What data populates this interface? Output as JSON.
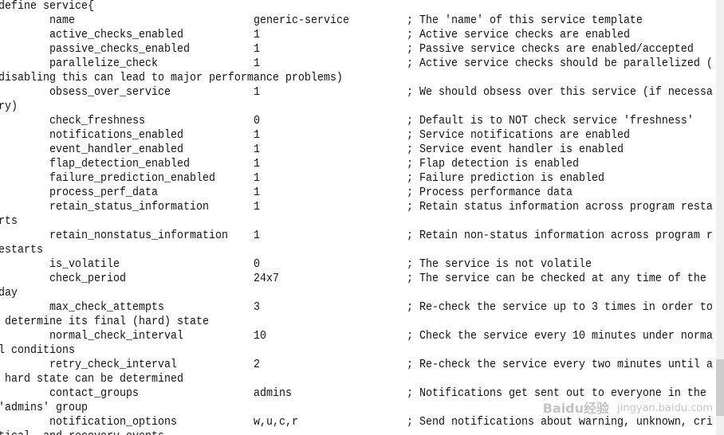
{
  "editor": {
    "rows": [
      {
        "text": "define service{"
      },
      {
        "name": "name",
        "value": "generic-service",
        "comment": "; The 'name' of this service template"
      },
      {
        "name": "active_checks_enabled",
        "value": "1",
        "comment": "; Active service checks are enabled"
      },
      {
        "name": "passive_checks_enabled",
        "value": "1",
        "comment": "; Passive service checks are enabled/accepted"
      },
      {
        "name": "parallelize_check",
        "value": "1",
        "comment": "; Active service checks should be parallelized ("
      },
      {
        "text": "disabling this can lead to major performance problems)"
      },
      {
        "name": "obsess_over_service",
        "value": "1",
        "comment": "; We should obsess over this service (if necessa"
      },
      {
        "text": "ry)"
      },
      {
        "name": "check_freshness",
        "value": "0",
        "comment": "; Default is to NOT check service 'freshness'"
      },
      {
        "name": "notifications_enabled",
        "value": "1",
        "comment": "; Service notifications are enabled"
      },
      {
        "name": "event_handler_enabled",
        "value": "1",
        "comment": "; Service event handler is enabled"
      },
      {
        "name": "flap_detection_enabled",
        "value": "1",
        "comment": "; Flap detection is enabled"
      },
      {
        "name": "failure_prediction_enabled",
        "value": "1",
        "comment": "; Failure prediction is enabled"
      },
      {
        "name": "process_perf_data",
        "value": "1",
        "comment": "; Process performance data"
      },
      {
        "name": "retain_status_information",
        "value": "1",
        "comment": "; Retain status information across program resta"
      },
      {
        "text": "rts"
      },
      {
        "name": "retain_nonstatus_information",
        "value": "1",
        "comment": "; Retain non-status information across program r"
      },
      {
        "text": "estarts"
      },
      {
        "name": "is_volatile",
        "value": "0",
        "comment": "; The service is not volatile"
      },
      {
        "name": "check_period",
        "value": "24x7",
        "comment": "; The service can be checked at any time of the"
      },
      {
        "text": "day"
      },
      {
        "name": "max_check_attempts",
        "value": "3",
        "comment": "; Re-check the service up to 3 times in order to"
      },
      {
        "text": " determine its final (hard) state"
      },
      {
        "name": "normal_check_interval",
        "value": "10",
        "comment": "; Check the service every 10 minutes under norma"
      },
      {
        "text": "l conditions"
      },
      {
        "name": "retry_check_interval",
        "value": "2",
        "comment": "; Re-check the service every two minutes until a"
      },
      {
        "text": " hard state can be determined"
      },
      {
        "name": "contact_groups",
        "value": "admins",
        "comment": "; Notifications get sent out to everyone in the"
      },
      {
        "text": "'admins' group"
      },
      {
        "name": "notification_options",
        "value": "w,u,c,r",
        "comment": "; Send notifications about warning, unknown, cri"
      },
      {
        "text": "tical, and recovery events"
      }
    ]
  },
  "scrollbar": {
    "position_fraction": 0.95,
    "visible_fraction": 0.13,
    "track_color": "#f0f0f0",
    "thumb_color": "#cdcdcd"
  },
  "watermark": {
    "line1": "Baidu经验",
    "line2": "jingyan.baidu.com"
  }
}
